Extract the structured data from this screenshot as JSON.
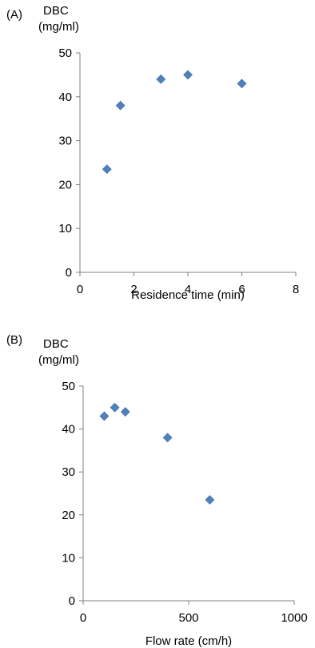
{
  "chart_data": [
    {
      "type": "scatter",
      "panel_label": "(A)",
      "ylabel_line1": "DBC",
      "ylabel_line2": "(mg/ml)",
      "xlabel": "Residence time (min)",
      "xlim": [
        0,
        8
      ],
      "ylim": [
        0,
        50
      ],
      "xticks": [
        "0",
        "2",
        "4",
        "6",
        "8"
      ],
      "yticks": [
        "0",
        "10",
        "20",
        "30",
        "40",
        "50"
      ],
      "grid": false,
      "marker_color": "#4f81bd",
      "marker_shape": "diamond",
      "series": [
        {
          "points": [
            {
              "x": 1,
              "y": 23.5
            },
            {
              "x": 1.5,
              "y": 38
            },
            {
              "x": 3,
              "y": 44
            },
            {
              "x": 4,
              "y": 45
            },
            {
              "x": 6,
              "y": 43
            }
          ]
        }
      ]
    },
    {
      "type": "scatter",
      "panel_label": "(B)",
      "ylabel_line1": "DBC",
      "ylabel_line2": "(mg/ml)",
      "xlabel": "Flow rate (cm/h)",
      "xlim": [
        0,
        1000
      ],
      "ylim": [
        0,
        50
      ],
      "xticks": [
        "0",
        "500",
        "1000"
      ],
      "yticks": [
        "0",
        "10",
        "20",
        "30",
        "40",
        "50"
      ],
      "grid": false,
      "marker_color": "#4f81bd",
      "marker_shape": "diamond",
      "series": [
        {
          "points": [
            {
              "x": 100,
              "y": 43
            },
            {
              "x": 150,
              "y": 45
            },
            {
              "x": 200,
              "y": 44
            },
            {
              "x": 400,
              "y": 38
            },
            {
              "x": 600,
              "y": 23.5
            }
          ]
        }
      ]
    }
  ]
}
